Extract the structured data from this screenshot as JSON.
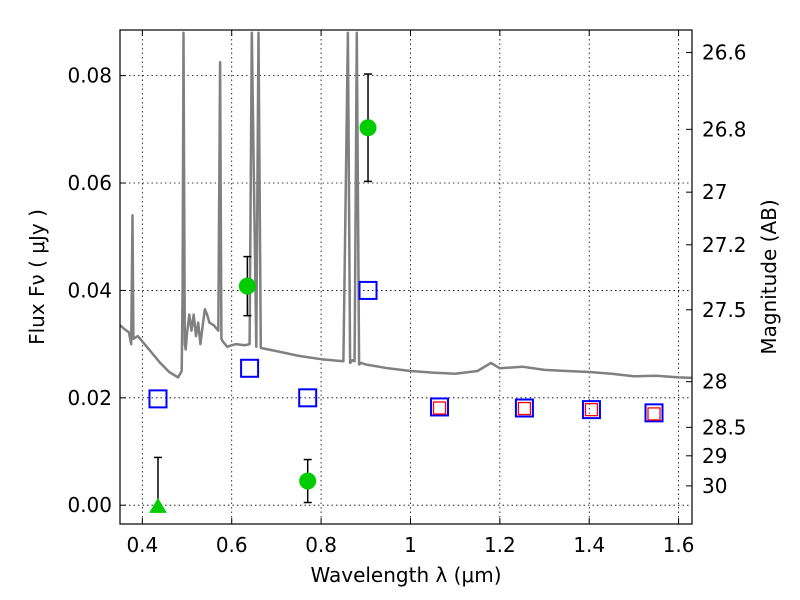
{
  "chart_data": {
    "type": "scatter",
    "title": "",
    "xlabel": "Wavelength  λ (μm)",
    "ylabel_left": "Flux  Fν  ( μJy )",
    "ylabel_right": "Magnitude (AB)",
    "xlim": [
      0.35,
      1.63
    ],
    "ylim": [
      -0.0035,
      0.0885
    ],
    "grid": true,
    "x_ticks": [
      0.4,
      0.6,
      0.8,
      1.0,
      1.2,
      1.4,
      1.6
    ],
    "x_tick_labels": [
      "0.4",
      "0.6",
      "0.8",
      "1",
      "1.2",
      "1.4",
      "1.6"
    ],
    "y_ticks": [
      0.0,
      0.02,
      0.04,
      0.06,
      0.08
    ],
    "y_tick_labels": [
      "0.00",
      "0.02",
      "0.04",
      "0.06",
      "0.08"
    ],
    "right_ticks": [
      {
        "label": "26.6",
        "flux": 0.0843
      },
      {
        "label": "26.8",
        "flux": 0.07
      },
      {
        "label": "27",
        "flux": 0.0583
      },
      {
        "label": "27.2",
        "flux": 0.0485
      },
      {
        "label": "27.5",
        "flux": 0.0364
      },
      {
        "label": "28",
        "flux": 0.023
      },
      {
        "label": "28.5",
        "flux": 0.0145
      },
      {
        "label": "29",
        "flux": 0.0092
      },
      {
        "label": "30",
        "flux": 0.0036
      }
    ],
    "series": [
      {
        "kind": "model_spectrum",
        "color": "#808080",
        "x": [
          0.35,
          0.36,
          0.37,
          0.375,
          0.378,
          0.38,
          0.39,
          0.4,
          0.42,
          0.44,
          0.46,
          0.48,
          0.488,
          0.49,
          0.492,
          0.495,
          0.497,
          0.5,
          0.505,
          0.51,
          0.515,
          0.52,
          0.525,
          0.53,
          0.535,
          0.54,
          0.545,
          0.55,
          0.56,
          0.57,
          0.574,
          0.577,
          0.58,
          0.59,
          0.6,
          0.61,
          0.62,
          0.63,
          0.64,
          0.645,
          0.655,
          0.66,
          0.665,
          0.67,
          0.7,
          0.75,
          0.8,
          0.85,
          0.86,
          0.865,
          0.87,
          0.875,
          0.88,
          0.885,
          0.89,
          0.9,
          0.95,
          1.0,
          1.05,
          1.1,
          1.15,
          1.18,
          1.2,
          1.25,
          1.3,
          1.35,
          1.4,
          1.45,
          1.5,
          1.55,
          1.6,
          1.63
        ],
        "y": [
          0.0335,
          0.0328,
          0.0322,
          0.03,
          0.054,
          0.031,
          0.0315,
          0.0305,
          0.0285,
          0.0265,
          0.0248,
          0.0238,
          0.025,
          0.04,
          0.088,
          0.03,
          0.029,
          0.032,
          0.0355,
          0.0325,
          0.0355,
          0.0315,
          0.034,
          0.03,
          0.0335,
          0.0365,
          0.0355,
          0.034,
          0.0335,
          0.0325,
          0.0825,
          0.031,
          0.0305,
          0.0295,
          0.0298,
          0.03,
          0.0299,
          0.0298,
          0.03,
          0.088,
          0.0295,
          0.088,
          0.0293,
          0.0292,
          0.0287,
          0.0278,
          0.0272,
          0.0268,
          0.088,
          0.0265,
          0.027,
          0.0268,
          0.088,
          0.0262,
          0.0265,
          0.0262,
          0.0255,
          0.025,
          0.0247,
          0.0245,
          0.025,
          0.0265,
          0.0255,
          0.0258,
          0.0252,
          0.025,
          0.0248,
          0.0245,
          0.024,
          0.0241,
          0.0238,
          0.0237
        ]
      },
      {
        "kind": "model_bandflux",
        "marker": "square",
        "color": "#0000ff",
        "x": [
          0.435,
          0.64,
          0.77,
          0.905,
          1.065,
          1.255,
          1.405,
          1.545
        ],
        "y": [
          0.0198,
          0.0255,
          0.02,
          0.04,
          0.0183,
          0.0181,
          0.0178,
          0.0172
        ]
      },
      {
        "kind": "observed_inner",
        "marker": "square",
        "color": "#ff0000",
        "x": [
          1.065,
          1.255,
          1.405,
          1.545
        ],
        "y": [
          0.0181,
          0.018,
          0.0178,
          0.017
        ]
      },
      {
        "kind": "observed",
        "marker": "circle",
        "color": "#00cc00",
        "x": [
          0.635,
          0.77,
          0.905
        ],
        "y": [
          0.0408,
          0.0045,
          0.0703
        ],
        "err_low": [
          0.0055,
          0.004,
          0.01
        ],
        "err_high": [
          0.0055,
          0.004,
          0.01
        ]
      },
      {
        "kind": "upper_limit",
        "marker": "triangle",
        "color": "#00cc00",
        "x": [
          0.435
        ],
        "y": [
          -0.0003
        ],
        "err_low": [
          0.0
        ],
        "err_high": [
          0.0092
        ]
      }
    ]
  }
}
